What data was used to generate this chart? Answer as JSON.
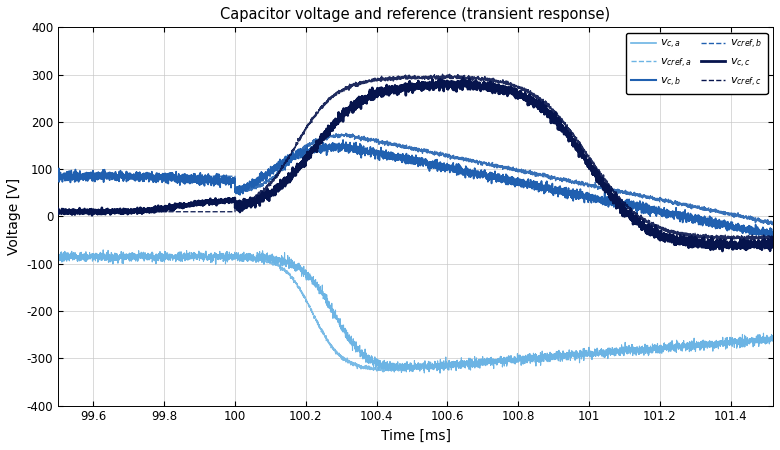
{
  "title": "Capacitor voltage and reference (transient response)",
  "xlabel": "Time [ms]",
  "ylabel": "Voltage [V]",
  "xlim": [
    99.5,
    101.52
  ],
  "ylim": [
    -400,
    400
  ],
  "yticks": [
    -400,
    -300,
    -200,
    -100,
    0,
    100,
    200,
    300,
    400
  ],
  "xticks": [
    99.6,
    99.8,
    100.0,
    100.2,
    100.4,
    100.6,
    100.8,
    101.0,
    101.2,
    101.4
  ],
  "color_a": "#6cb4e4",
  "color_b": "#2060b0",
  "color_c": "#06144d",
  "background": "#ffffff",
  "grid_color": "#c8c8c8"
}
